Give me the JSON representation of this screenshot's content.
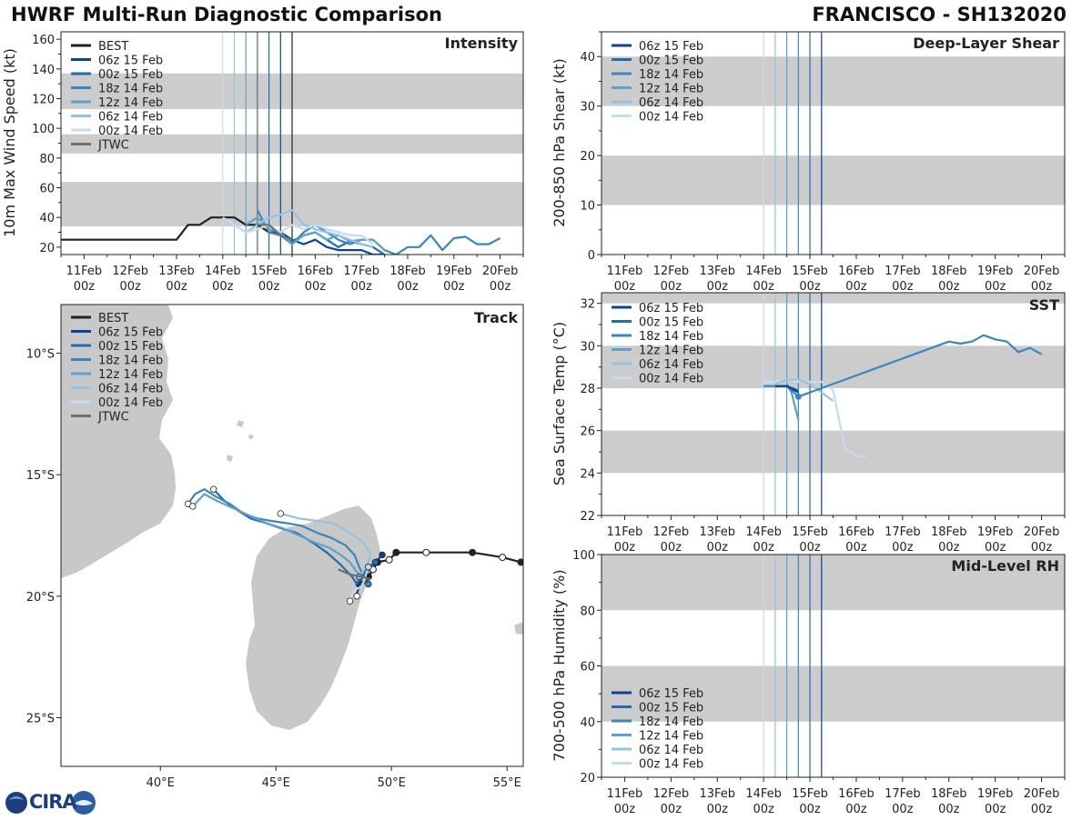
{
  "header": {
    "title_left": "HWRF Multi-Run Diagnostic Comparison",
    "title_right": "FRANCISCO - SH132020"
  },
  "logo": {
    "text": "CIRA"
  },
  "colors": {
    "BEST": "#222222",
    "06z 15 Feb": "#08459a",
    "00z 15 Feb": "#1f6cb2",
    "18z 14 Feb": "#3987c0",
    "12z 14 Feb": "#5ca2d1",
    "06z 14 Feb": "#94c4e0",
    "00z 14 Feb": "#c4dcef",
    "JTWC": "#6f6f6f",
    "band": "#cccccc",
    "land": "#c8c8c8"
  },
  "chart_data": [
    {
      "id": "intensity",
      "type": "line",
      "title": "Intensity",
      "ylabel": "10m Max Wind Speed (kt)",
      "xlim": [
        -0.5,
        9.5
      ],
      "ylim": [
        15,
        165
      ],
      "yticks": [
        20,
        40,
        60,
        80,
        100,
        120,
        140,
        160
      ],
      "xticks": [
        0,
        1,
        2,
        3,
        4,
        5,
        6,
        7,
        8,
        9
      ],
      "xticklabels": [
        "11Feb\n00z",
        "12Feb\n00z",
        "13Feb\n00z",
        "14Feb\n00z",
        "15Feb\n00z",
        "16Feb\n00z",
        "17Feb\n00z",
        "18Feb\n00z",
        "19Feb\n00z",
        "20Feb\n00z"
      ],
      "bands": [
        [
          34,
          64
        ],
        [
          83,
          96
        ],
        [
          113,
          137
        ]
      ],
      "vlines": [
        {
          "name": "00z 14 Feb",
          "x": 3.0
        },
        {
          "name": "06z 14 Feb",
          "x": 3.25
        },
        {
          "name": "12z 14 Feb",
          "x": 3.5
        },
        {
          "name": "18z 14 Feb",
          "x": 3.75
        },
        {
          "name": "00z 15 Feb",
          "x": 4.0
        },
        {
          "name": "06z 15 Feb",
          "x": 4.25
        },
        {
          "name": "JTWC",
          "x": 3.75
        },
        {
          "name": "BEST",
          "x": 4.5
        }
      ],
      "legend": [
        "BEST",
        "06z 15 Feb",
        "00z 15 Feb",
        "18z 14 Feb",
        "12z 14 Feb",
        "06z 14 Feb",
        "00z 14 Feb",
        "JTWC"
      ],
      "series": [
        {
          "name": "BEST",
          "x": [
            -0.5,
            0,
            0.5,
            1,
            1.5,
            2,
            2.25,
            2.5,
            2.75,
            3,
            3.25,
            3.5,
            3.75,
            4,
            4.25,
            4.5
          ],
          "y": [
            25,
            25,
            25,
            25,
            25,
            25,
            35,
            35,
            40,
            40,
            40,
            35,
            35,
            30,
            30,
            25
          ]
        },
        {
          "name": "06z 15 Feb",
          "x": [
            4.25,
            4.5,
            4.75,
            5,
            5.25,
            5.5,
            5.75,
            6,
            6.25,
            6.5
          ],
          "y": [
            30,
            25,
            22,
            25,
            20,
            18,
            18,
            18,
            15,
            15
          ]
        },
        {
          "name": "00z 15 Feb",
          "x": [
            4.0,
            4.25,
            4.5,
            4.75,
            5,
            5.25,
            5.5,
            5.75,
            6,
            6.25,
            6.5
          ],
          "y": [
            30,
            28,
            24,
            28,
            30,
            25,
            20,
            24,
            22,
            20,
            15
          ]
        },
        {
          "name": "18z 14 Feb",
          "x": [
            3.75,
            4.0,
            4.25,
            4.5,
            4.75,
            5,
            5.25,
            5.5,
            5.75,
            6,
            6.25,
            6.5,
            6.75,
            7,
            7.25,
            7.5,
            7.75,
            8,
            8.25,
            8.5,
            8.75,
            9
          ],
          "y": [
            45,
            30,
            28,
            22,
            30,
            35,
            30,
            25,
            22,
            25,
            25,
            18,
            15,
            20,
            20,
            28,
            18,
            26,
            27,
            22,
            22,
            26
          ]
        },
        {
          "name": "12z 14 Feb",
          "x": [
            3.5,
            3.75,
            4.0,
            4.25,
            4.5,
            4.75,
            5,
            5.25,
            5.5,
            5.75,
            6,
            6.25,
            6.5
          ],
          "y": [
            35,
            40,
            32,
            30,
            22,
            28,
            30,
            25,
            28,
            24,
            25,
            25,
            18
          ]
        },
        {
          "name": "06z 14 Feb",
          "x": [
            3.25,
            3.5,
            3.75,
            4.0,
            4.25,
            4.5,
            4.75,
            5,
            5.25,
            5.5,
            5.75,
            6,
            6.25
          ],
          "y": [
            35,
            30,
            35,
            40,
            42,
            45,
            35,
            32,
            30,
            28,
            25,
            22,
            20
          ]
        },
        {
          "name": "00z 14 Feb",
          "x": [
            3.0,
            3.25,
            3.5,
            3.75,
            4.0,
            4.25,
            4.5,
            4.75,
            5,
            5.25,
            5.5,
            5.75,
            6,
            6.25
          ],
          "y": [
            40,
            35,
            30,
            32,
            35,
            30,
            35,
            32,
            35,
            32,
            30,
            28,
            28,
            22
          ]
        },
        {
          "name": "JTWC",
          "x": [
            3.75,
            4.0,
            4.25,
            4.5
          ],
          "y": [
            35,
            35,
            28,
            25
          ]
        }
      ]
    },
    {
      "id": "shear",
      "type": "line",
      "title": "Deep-Layer Shear",
      "ylabel": "200-850 hPa Shear (kt)",
      "xlim": [
        -0.5,
        9.5
      ],
      "ylim": [
        0,
        45
      ],
      "yticks": [
        0,
        10,
        20,
        30,
        40
      ],
      "xticks": [
        0,
        1,
        2,
        3,
        4,
        5,
        6,
        7,
        8,
        9
      ],
      "xticklabels": [
        "11Feb\n00z",
        "12Feb\n00z",
        "13Feb\n00z",
        "14Feb\n00z",
        "15Feb\n00z",
        "16Feb\n00z",
        "17Feb\n00z",
        "18Feb\n00z",
        "19Feb\n00z",
        "20Feb\n00z"
      ],
      "bands": [
        [
          10,
          20
        ],
        [
          30,
          40
        ]
      ],
      "vlines": [
        {
          "name": "00z 14 Feb",
          "x": 3.0
        },
        {
          "name": "06z 14 Feb",
          "x": 3.25
        },
        {
          "name": "12z 14 Feb",
          "x": 3.5
        },
        {
          "name": "18z 14 Feb",
          "x": 3.75
        },
        {
          "name": "00z 15 Feb",
          "x": 4.0
        },
        {
          "name": "06z 15 Feb",
          "x": 4.25
        }
      ],
      "legend": [
        "06z 15 Feb",
        "00z 15 Feb",
        "18z 14 Feb",
        "12z 14 Feb",
        "06z 14 Feb",
        "00z 14 Feb"
      ],
      "series": []
    },
    {
      "id": "sst",
      "type": "line",
      "title": "SST",
      "ylabel": "Sea Surface Temp (°C)",
      "xlim": [
        -0.5,
        9.5
      ],
      "ylim": [
        22,
        32.5
      ],
      "yticks": [
        22,
        24,
        26,
        28,
        30,
        32
      ],
      "xticks": [
        0,
        1,
        2,
        3,
        4,
        5,
        6,
        7,
        8,
        9
      ],
      "xticklabels": [
        "11Feb\n00z",
        "12Feb\n00z",
        "13Feb\n00z",
        "14Feb\n00z",
        "15Feb\n00z",
        "16Feb\n00z",
        "17Feb\n00z",
        "18Feb\n00z",
        "19Feb\n00z",
        "20Feb\n00z"
      ],
      "bands": [
        [
          24,
          26
        ],
        [
          28,
          30
        ],
        [
          32,
          34
        ]
      ],
      "vlines": [
        {
          "name": "00z 14 Feb",
          "x": 3.0
        },
        {
          "name": "06z 14 Feb",
          "x": 3.25
        },
        {
          "name": "12z 14 Feb",
          "x": 3.5
        },
        {
          "name": "18z 14 Feb",
          "x": 3.75
        },
        {
          "name": "00z 15 Feb",
          "x": 4.0
        },
        {
          "name": "06z 15 Feb",
          "x": 4.25
        }
      ],
      "legend": [
        "06z 15 Feb",
        "00z 15 Feb",
        "18z 14 Feb",
        "12z 14 Feb",
        "06z 14 Feb",
        "00z 14 Feb"
      ],
      "series": [
        {
          "name": "00z 14 Feb",
          "x": [
            3.0,
            3.25,
            3.5,
            3.75,
            4.0,
            4.25,
            4.5,
            4.75,
            5.0,
            5.25
          ],
          "y": [
            28.3,
            28.3,
            28.4,
            28.3,
            28.3,
            28.3,
            27.9,
            25.2,
            24.8,
            24.8
          ]
        },
        {
          "name": "06z 14 Feb",
          "x": [
            3.25,
            3.5,
            3.75,
            4.0,
            4.25,
            4.5
          ],
          "y": [
            28.2,
            28.4,
            28.4,
            28.2,
            27.8,
            27.4
          ]
        },
        {
          "name": "12z 14 Feb",
          "x": [
            3.5,
            3.6,
            3.75
          ],
          "y": [
            28.2,
            27.8,
            26.5
          ]
        },
        {
          "name": "18z 14 Feb",
          "x": [
            3.0,
            3.25,
            3.5,
            3.75,
            7.0,
            7.25,
            7.5,
            7.75,
            8.0,
            8.25,
            8.5,
            8.75,
            9.0
          ],
          "y": [
            28.1,
            28.1,
            28.1,
            27.6,
            30.2,
            30.1,
            30.2,
            30.5,
            30.3,
            30.2,
            29.7,
            29.9,
            29.6
          ]
        },
        {
          "name": "00z 15 Feb",
          "x": [
            3.25,
            3.5,
            3.75
          ],
          "y": [
            28.1,
            28.1,
            27.9
          ]
        },
        {
          "name": "06z 15 Feb",
          "x": [
            3.25,
            3.5,
            3.75
          ],
          "y": [
            28.1,
            28.1,
            27.8
          ]
        }
      ],
      "markers": [
        {
          "name": "18z 14 Feb",
          "x": 3.75,
          "y": 27.6
        }
      ]
    },
    {
      "id": "rh",
      "type": "line",
      "title": "Mid-Level RH",
      "ylabel": "700-500 hPa Humidity (%)",
      "xlim": [
        -0.5,
        9.5
      ],
      "ylim": [
        20,
        100
      ],
      "yticks": [
        20,
        40,
        60,
        80,
        100
      ],
      "xticks": [
        0,
        1,
        2,
        3,
        4,
        5,
        6,
        7,
        8,
        9
      ],
      "xticklabels": [
        "11Feb\n00z",
        "12Feb\n00z",
        "13Feb\n00z",
        "14Feb\n00z",
        "15Feb\n00z",
        "16Feb\n00z",
        "17Feb\n00z",
        "18Feb\n00z",
        "19Feb\n00z",
        "20Feb\n00z"
      ],
      "bands": [
        [
          40,
          60
        ],
        [
          80,
          100
        ]
      ],
      "vlines": [
        {
          "name": "00z 14 Feb",
          "x": 3.0
        },
        {
          "name": "06z 14 Feb",
          "x": 3.25
        },
        {
          "name": "12z 14 Feb",
          "x": 3.5
        },
        {
          "name": "18z 14 Feb",
          "x": 3.75
        },
        {
          "name": "00z 15 Feb",
          "x": 4.0
        },
        {
          "name": "06z 15 Feb",
          "x": 4.25
        }
      ],
      "legend": [
        "06z 15 Feb",
        "00z 15 Feb",
        "18z 14 Feb",
        "12z 14 Feb",
        "06z 14 Feb",
        "00z 14 Feb"
      ],
      "series": []
    },
    {
      "id": "track",
      "type": "scatter",
      "title": "Track",
      "xlim": [
        35.7,
        55.7
      ],
      "ylim": [
        -27,
        -8
      ],
      "xticks": [
        40,
        45,
        50,
        55
      ],
      "xticklabels": [
        "40°E",
        "45°E",
        "50°E",
        "55°E"
      ],
      "yticks": [
        -10,
        -15,
        -20,
        -25
      ],
      "yticklabels": [
        "10°S",
        "15°S",
        "20°S",
        "25°S"
      ],
      "legend": [
        "BEST",
        "06z 15 Feb",
        "00z 15 Feb",
        "18z 14 Feb",
        "12z 14 Feb",
        "06z 14 Feb",
        "00z 14 Feb",
        "JTWC"
      ],
      "tracks": [
        {
          "name": "BEST",
          "lon": [
            55.6,
            54.8,
            53.5,
            51.5,
            50.2,
            49.9,
            49.4,
            49.2,
            49.0,
            48.7,
            48.6
          ],
          "lat": [
            -18.6,
            -18.4,
            -18.2,
            -18.2,
            -18.2,
            -18.5,
            -18.6,
            -18.9,
            -19.2,
            -19.4,
            -19.5
          ],
          "closed": [
            -18.6,
            -18.2
          ]
        },
        {
          "name": "06z 15 Feb",
          "lon": [
            49.6,
            49.4,
            49.1,
            48.8,
            48.6,
            48.5,
            48.5
          ],
          "lat": [
            -18.3,
            -18.5,
            -18.8,
            -19.2,
            -19.6,
            -19.9,
            -20.0
          ]
        },
        {
          "name": "00z 15 Feb",
          "lon": [
            49.3,
            48.9,
            48.7,
            48.5,
            48.3,
            47.8,
            47.2,
            46.6,
            45.9,
            45.2,
            44.6,
            43.9,
            43.4,
            42.8,
            42.3
          ],
          "lat": [
            -18.6,
            -18.9,
            -19.2,
            -19.5,
            -19.2,
            -18.7,
            -18.2,
            -17.8,
            -17.4,
            -17.2,
            -17.0,
            -16.8,
            -16.5,
            -16.1,
            -15.6
          ]
        },
        {
          "name": "18z 14 Feb",
          "lon": [
            49.0,
            48.8,
            48.6,
            48.4,
            48.0,
            47.4,
            46.8,
            46.1,
            45.5,
            44.8,
            44.2,
            43.6,
            43.0,
            42.4,
            41.9,
            41.5,
            41.2
          ],
          "lat": [
            -19.5,
            -19.2,
            -18.8,
            -18.3,
            -17.9,
            -17.6,
            -17.4,
            -17.1,
            -17.0,
            -16.9,
            -16.8,
            -16.6,
            -16.2,
            -15.9,
            -15.6,
            -15.8,
            -16.2
          ]
        },
        {
          "name": "12z 14 Feb",
          "lon": [
            48.8,
            48.5,
            48.2,
            47.8,
            47.3,
            46.7,
            46.0,
            45.3,
            44.6,
            43.9,
            43.2,
            42.5,
            41.9,
            41.4
          ],
          "lat": [
            -19.3,
            -19.0,
            -18.6,
            -18.3,
            -18.0,
            -17.8,
            -17.5,
            -17.2,
            -17.0,
            -16.7,
            -16.4,
            -16.1,
            -15.8,
            -16.3
          ]
        },
        {
          "name": "06z 14 Feb",
          "lon": [
            48.6,
            48.9,
            49.1,
            48.8,
            48.2,
            47.5,
            46.8,
            46.0,
            45.2
          ],
          "lat": [
            -19.2,
            -18.8,
            -18.3,
            -17.8,
            -17.4,
            -17.0,
            -16.9,
            -16.8,
            -16.6
          ]
        },
        {
          "name": "00z 14 Feb",
          "lon": [
            49.0,
            48.9,
            48.8,
            48.7,
            48.5,
            48.3,
            48.2
          ],
          "lat": [
            -18.8,
            -19.1,
            -19.4,
            -19.6,
            -19.7,
            -19.9,
            -20.2
          ]
        },
        {
          "name": "JTWC",
          "lon": [
            47.7,
            48.2,
            48.7,
            49.1
          ],
          "lat": [
            -18.9,
            -19.1,
            -19.2,
            -19.3
          ]
        }
      ]
    }
  ]
}
